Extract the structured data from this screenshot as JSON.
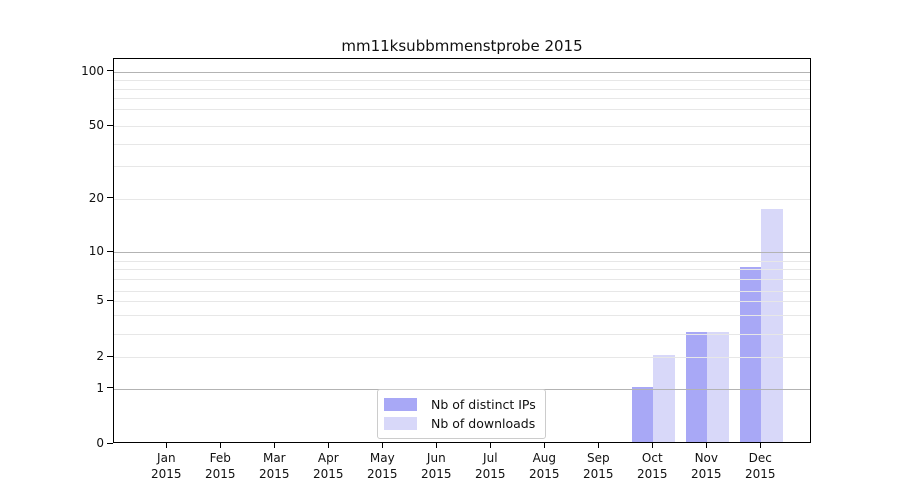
{
  "title": "mm11ksubbmmenstprobe 2015",
  "chart_data": {
    "type": "bar",
    "title": "mm11ksubbmmenstprobe 2015",
    "categories": [
      "Jan",
      "Feb",
      "Mar",
      "Apr",
      "May",
      "Jun",
      "Jul",
      "Aug",
      "Sep",
      "Oct",
      "Nov",
      "Dec"
    ],
    "tick_year": "2015",
    "series": [
      {
        "name": "Nb of distinct IPs",
        "color": "#a8a8f6",
        "values": [
          0,
          0,
          0,
          0,
          0,
          0,
          0,
          0,
          0,
          1,
          3,
          8
        ]
      },
      {
        "name": "Nb of downloads",
        "color": "#d8d8f9",
        "values": [
          0,
          0,
          0,
          0,
          0,
          0,
          0,
          0,
          0,
          2,
          3,
          17
        ]
      }
    ],
    "xlabel": "",
    "ylabel": "",
    "yscale": "log-like (0 baseline with log decades above 1)",
    "ylim": [
      0,
      115
    ],
    "ytick_labels": [
      "0",
      "1",
      "2",
      "5",
      "10",
      "20",
      "50",
      "100"
    ],
    "ytick_values": [
      0,
      1,
      2,
      5,
      10,
      20,
      50,
      100
    ],
    "major_gridlines": [
      1,
      10,
      100
    ],
    "minor_gridlines": [
      2,
      3,
      4,
      5,
      6,
      7,
      8,
      9,
      20,
      30,
      40,
      50,
      60,
      70,
      80,
      90
    ],
    "grid": true,
    "legend_position": "lower center inside plot"
  },
  "colors": {
    "series_dark": "#a8a8f6",
    "series_light": "#d8d8f9",
    "major_grid": "#b3b3b3",
    "minor_grid": "#e7e7e7",
    "spine": "#000000",
    "background": "#ffffff"
  }
}
